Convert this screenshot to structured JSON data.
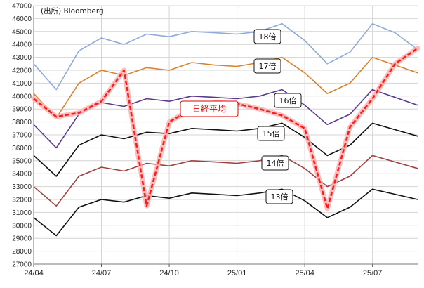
{
  "source_note": "(出所) Bloomberg",
  "chart_data": {
    "type": "line",
    "title": "",
    "xlabel": "",
    "ylabel": "",
    "ylim": [
      27000,
      47000
    ],
    "y_ticks": [
      27000,
      28000,
      29000,
      30000,
      31000,
      32000,
      33000,
      34000,
      35000,
      36000,
      37000,
      38000,
      39000,
      40000,
      41000,
      42000,
      43000,
      44000,
      45000,
      46000,
      47000
    ],
    "x_ticks": [
      "24/04",
      "24/07",
      "24/10",
      "25/01",
      "25/04",
      "25/07"
    ],
    "x": [
      "24/04",
      "24/05",
      "24/06",
      "24/07",
      "24/08",
      "24/09",
      "24/10",
      "24/11",
      "24/12",
      "25/01",
      "25/02",
      "25/03",
      "25/04",
      "25/05",
      "25/06",
      "25/07",
      "25/08",
      "25/09"
    ],
    "grid": true,
    "series": [
      {
        "name": "18倍",
        "color": "#8ea9db",
        "dash": false,
        "values": [
          42500,
          40500,
          43500,
          44500,
          44000,
          44800,
          44600,
          45000,
          44900,
          44800,
          45000,
          45600,
          44300,
          42500,
          43400,
          45600,
          44900,
          43600
        ]
      },
      {
        "name": "17倍",
        "color": "#d9812b",
        "dash": false,
        "values": [
          40200,
          38300,
          41000,
          42000,
          41600,
          42200,
          42000,
          42600,
          42400,
          42300,
          42600,
          43000,
          41800,
          40200,
          41000,
          43000,
          42400,
          41800
        ]
      },
      {
        "name": "16倍",
        "color": "#5b3a8e",
        "dash": false,
        "values": [
          37800,
          36000,
          38600,
          39500,
          39200,
          39800,
          39600,
          40000,
          39900,
          39800,
          40000,
          40500,
          39300,
          37800,
          38600,
          40500,
          39900,
          39300
        ]
      },
      {
        "name": "15倍",
        "color": "#111111",
        "dash": false,
        "values": [
          35400,
          33800,
          36200,
          37000,
          36700,
          37200,
          37100,
          37500,
          37400,
          37300,
          37500,
          37900,
          36800,
          35400,
          36200,
          37900,
          37400,
          36900
        ]
      },
      {
        "name": "14倍",
        "color": "#a04040",
        "dash": false,
        "values": [
          33000,
          31500,
          33800,
          34500,
          34200,
          34800,
          34600,
          35000,
          34900,
          34800,
          35000,
          35400,
          34400,
          33000,
          33800,
          35400,
          34900,
          34400
        ]
      },
      {
        "name": "13倍",
        "color": "#111111",
        "dash": false,
        "values": [
          30600,
          29200,
          31400,
          32000,
          31800,
          32300,
          32100,
          32500,
          32400,
          32300,
          32500,
          32800,
          31900,
          30600,
          31400,
          32800,
          32400,
          32000
        ]
      },
      {
        "name": "日経平均",
        "color": "#ff1a1a",
        "dash": true,
        "values": [
          39800,
          38400,
          38700,
          39600,
          42000,
          31500,
          38000,
          39000,
          39500,
          39400,
          39000,
          38500,
          37500,
          31300,
          37600,
          39800,
          42500,
          43700
        ]
      }
    ],
    "labels": [
      {
        "text": "18倍",
        "series": "18倍"
      },
      {
        "text": "17倍",
        "series": "17倍"
      },
      {
        "text": "16倍",
        "series": "16倍"
      },
      {
        "text": "15倍",
        "series": "15倍"
      },
      {
        "text": "14倍",
        "series": "14倍"
      },
      {
        "text": "13倍",
        "series": "13倍"
      },
      {
        "text": "日経平均",
        "series": "日経平均"
      }
    ]
  }
}
